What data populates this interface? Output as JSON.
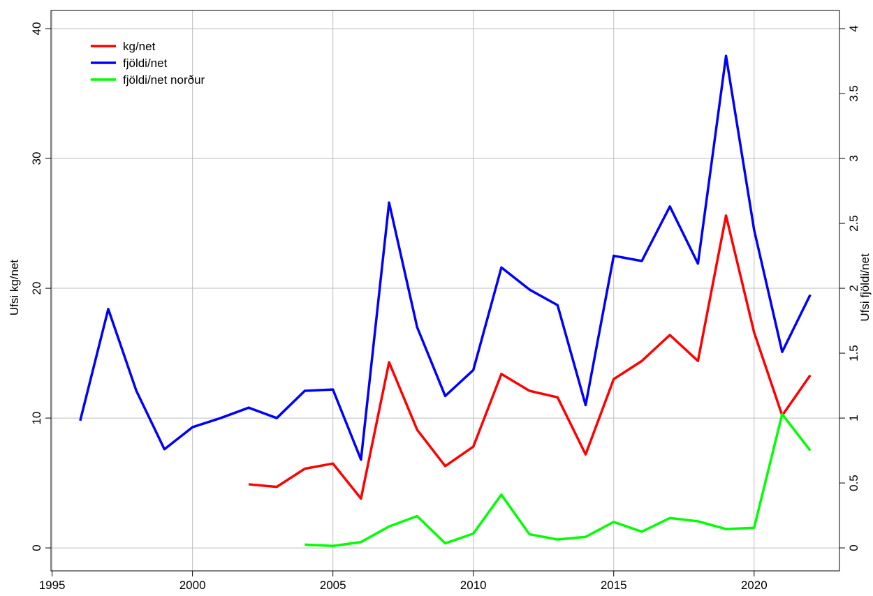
{
  "chart_data": {
    "type": "line",
    "y_label": "Ufsi kg/net",
    "y2_label": "Ufsi fjöldi/net",
    "x": [
      1996,
      1997,
      1998,
      1999,
      2000,
      2001,
      2002,
      2003,
      2004,
      2005,
      2006,
      2007,
      2008,
      2009,
      2010,
      2011,
      2012,
      2013,
      2014,
      2015,
      2016,
      2017,
      2018,
      2019,
      2020,
      2021,
      2022
    ],
    "series": [
      {
        "name": "kg/net",
        "color": "#ff0000",
        "axis": "y",
        "values": [
          null,
          null,
          null,
          null,
          null,
          null,
          4.9,
          4.7,
          6.1,
          6.5,
          3.8,
          14.3,
          9.1,
          6.3,
          7.8,
          13.4,
          12.1,
          11.6,
          7.2,
          13.0,
          14.4,
          16.4,
          14.4,
          25.6,
          16.6,
          10.2,
          13.3
        ]
      },
      {
        "name": "fjöldi/net",
        "color": "#0000ff",
        "axis": "y2",
        "values": [
          0.98,
          1.84,
          1.21,
          0.76,
          0.93,
          1.0,
          1.08,
          1.0,
          1.21,
          1.22,
          0.68,
          2.66,
          1.7,
          1.17,
          1.37,
          2.16,
          1.99,
          1.87,
          1.1,
          2.25,
          2.21,
          2.63,
          2.19,
          3.79,
          2.45,
          1.51,
          1.95
        ]
      },
      {
        "name": "fjöldi/net norður",
        "color": "#00ff00",
        "axis": "y2",
        "values": [
          null,
          null,
          null,
          null,
          null,
          null,
          null,
          null,
          0.025,
          0.015,
          0.045,
          0.165,
          0.245,
          0.035,
          0.11,
          0.41,
          0.105,
          0.065,
          0.085,
          0.2,
          0.125,
          0.23,
          0.205,
          0.145,
          0.155,
          1.03,
          0.75
        ]
      }
    ],
    "xlim": [
      1994.96,
      2023.04
    ],
    "xticks": [
      1995,
      2000,
      2005,
      2010,
      2015,
      2020
    ],
    "ylim": [
      -1.77,
      41.4
    ],
    "yticks": [
      0,
      10,
      20,
      30,
      40
    ],
    "y2lim": [
      -0.177,
      4.14
    ],
    "y2ticks": [
      0,
      0.5,
      1,
      1.5,
      2,
      2.5,
      3,
      3.5,
      4
    ],
    "grid": true,
    "legend": "top-left"
  }
}
